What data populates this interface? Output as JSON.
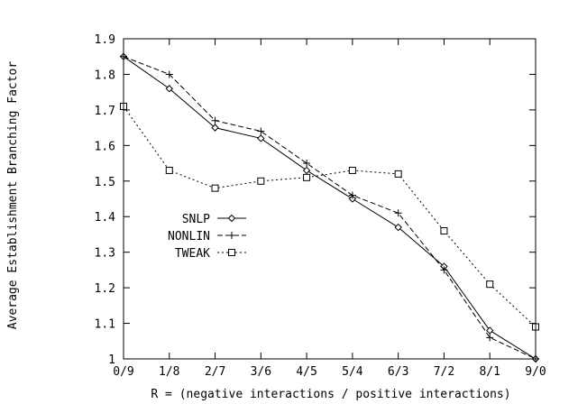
{
  "chart_data": {
    "type": "line",
    "title": "",
    "xlabel": "R = (negative interactions / positive interactions)",
    "ylabel": "Average Establishment Branching Factor",
    "categories": [
      "0/9",
      "1/8",
      "2/7",
      "3/6",
      "4/5",
      "5/4",
      "6/3",
      "7/2",
      "8/1",
      "9/0"
    ],
    "ylim": [
      1,
      1.9
    ],
    "yticks": [
      "1",
      "1.1",
      "1.2",
      "1.3",
      "1.4",
      "1.5",
      "1.6",
      "1.7",
      "1.8",
      "1.9"
    ],
    "grid": false,
    "legend_position": "middle-left",
    "series": [
      {
        "name": "SNLP",
        "marker": "diamond",
        "dash": "solid",
        "color": "#000000",
        "values": [
          1.85,
          1.76,
          1.65,
          1.62,
          1.53,
          1.45,
          1.37,
          1.26,
          1.08,
          1.0
        ]
      },
      {
        "name": "NONLIN",
        "marker": "plus",
        "dash": "dashed",
        "color": "#000000",
        "values": [
          1.85,
          1.8,
          1.67,
          1.64,
          1.55,
          1.46,
          1.41,
          1.25,
          1.06,
          1.0
        ]
      },
      {
        "name": "TWEAK",
        "marker": "square",
        "dash": "dotted",
        "color": "#000000",
        "values": [
          1.71,
          1.53,
          1.48,
          1.5,
          1.51,
          1.53,
          1.52,
          1.36,
          1.21,
          1.09
        ]
      }
    ]
  }
}
